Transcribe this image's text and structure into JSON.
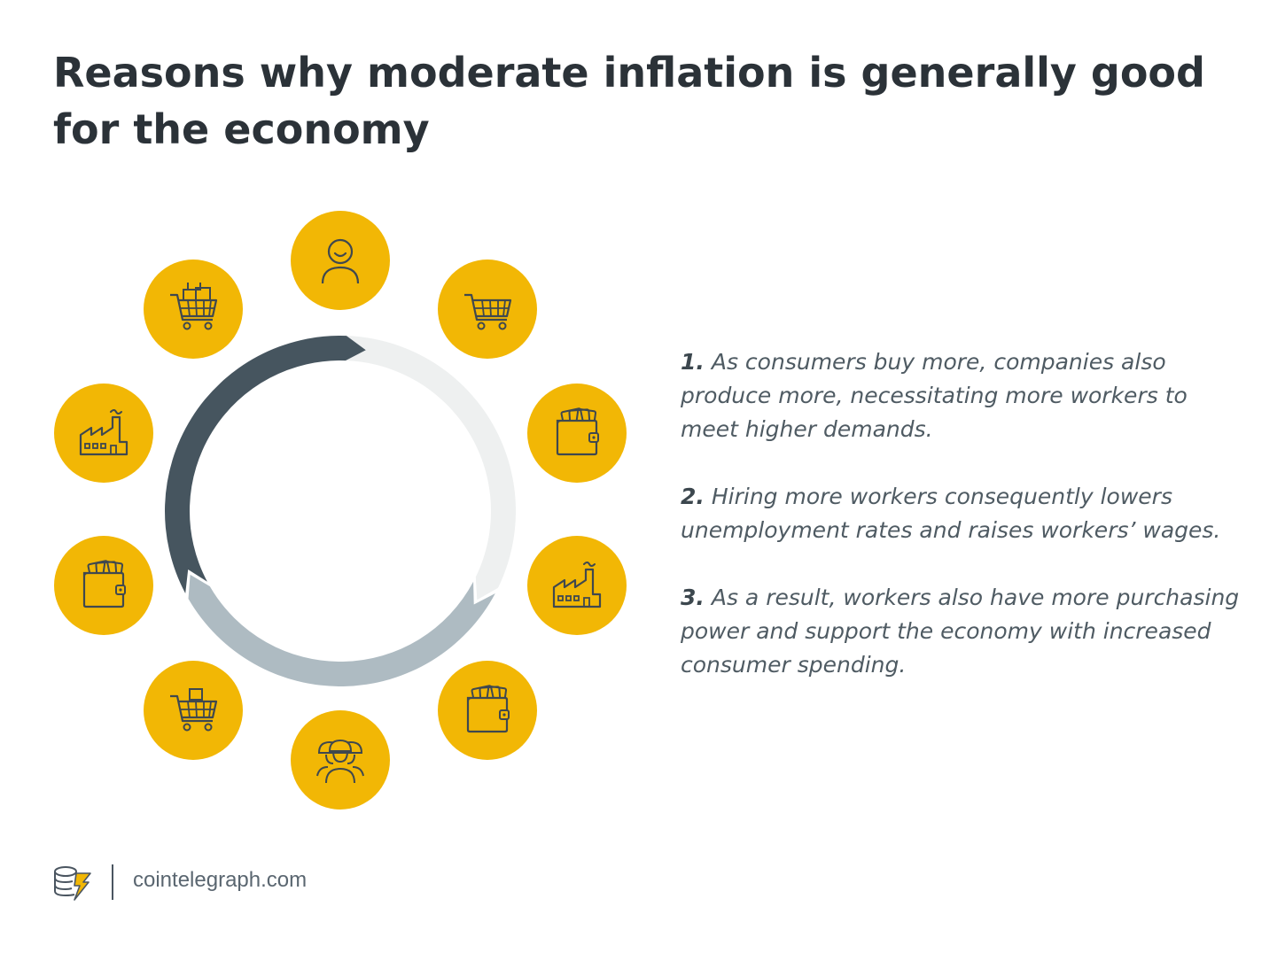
{
  "title": "Reasons why moderate inflation is generally good for the economy",
  "colors": {
    "circle_fill": "#f2b705",
    "icon_stroke": "#3f484f",
    "ring_dark": "#46555f",
    "ring_mid": "#aebbc2",
    "ring_light": "#eef0f0"
  },
  "cycle": {
    "icons": [
      {
        "name": "consumer-icon"
      },
      {
        "name": "shopping-cart-icon"
      },
      {
        "name": "wallet-icon"
      },
      {
        "name": "factory-icon"
      },
      {
        "name": "wallet-icon"
      },
      {
        "name": "workers-icon"
      },
      {
        "name": "shopping-cart-icon"
      },
      {
        "name": "wallet-icon"
      },
      {
        "name": "factory-icon"
      },
      {
        "name": "cart-with-boxes-icon"
      }
    ]
  },
  "points": [
    {
      "num": "1.",
      "text": "As consumers buy more, companies also produce more, necessitating more workers to meet higher demands."
    },
    {
      "num": "2.",
      "text": "Hiring more workers consequently lowers unemployment rates and raises workers’ wages."
    },
    {
      "num": "3.",
      "text": "As a result, workers also have more purchasing power and support the economy with increased consumer spending."
    }
  ],
  "footer": {
    "logo_icon": "cointelegraph-logo-icon",
    "site": "cointelegraph.com"
  }
}
